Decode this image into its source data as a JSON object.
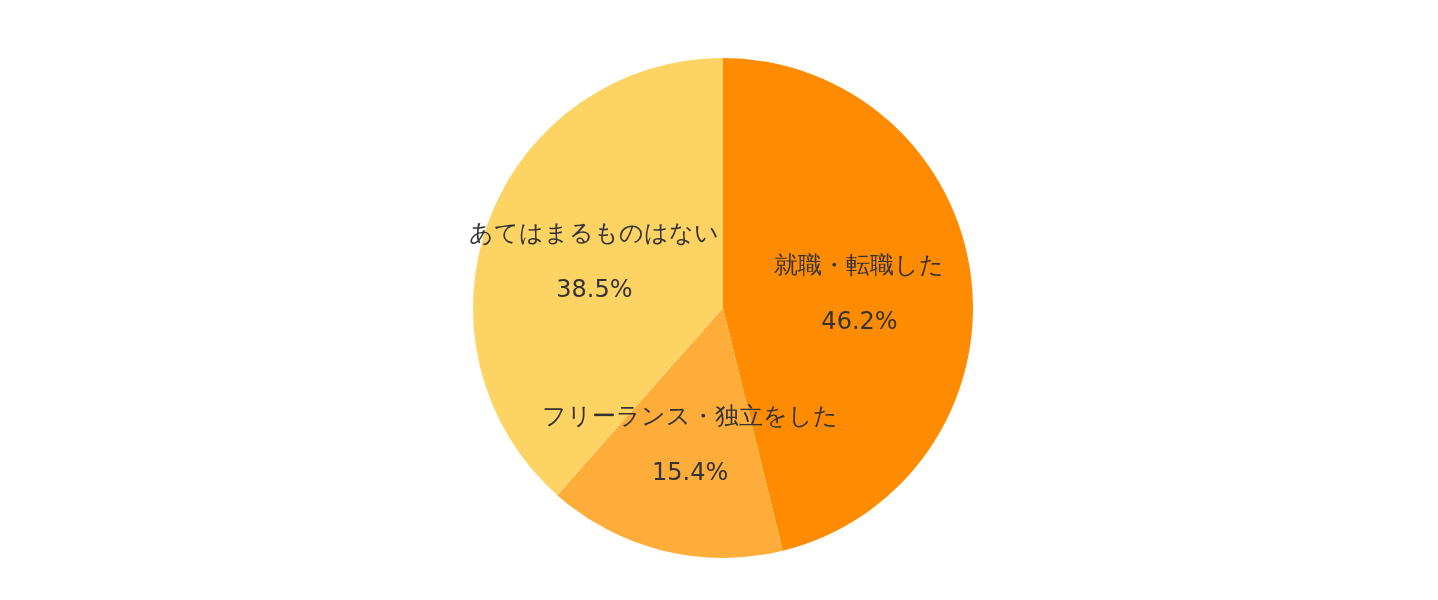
{
  "chart_data": {
    "type": "pie",
    "categories": [
      "就職・転職した",
      "フリーランス・独立をした",
      "あてはまるものはない"
    ],
    "values": [
      46.2,
      15.4,
      38.5
    ],
    "value_labels": [
      "46.2%",
      "15.4%",
      "38.5%"
    ],
    "colors": [
      "#ff8c00",
      "#ffad3a",
      "#fdd363"
    ],
    "legend": false
  }
}
